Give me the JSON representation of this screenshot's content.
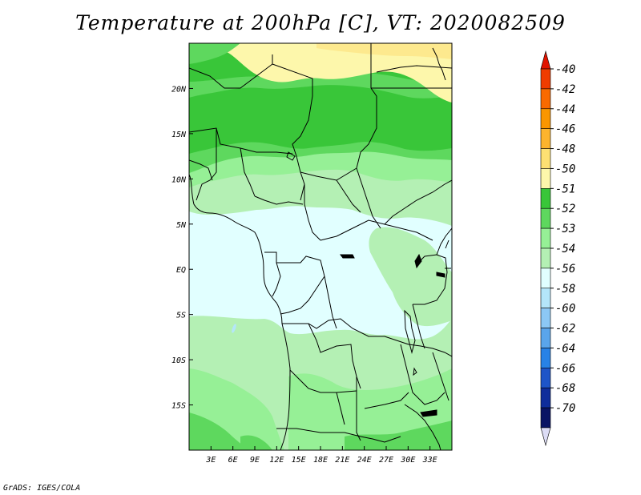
{
  "title": "Temperature at 200hPa [C], VT: 2020082509",
  "footer": "GrADS: IGES/COLA",
  "map": {
    "lon_range": [
      0,
      36
    ],
    "lat_range": [
      -20,
      25
    ],
    "lat_ticks": [
      {
        "value": 20,
        "label": "20N"
      },
      {
        "value": 15,
        "label": "15N"
      },
      {
        "value": 10,
        "label": "10N"
      },
      {
        "value": 5,
        "label": "5N"
      },
      {
        "value": 0,
        "label": "EQ"
      },
      {
        "value": -5,
        "label": "5S"
      },
      {
        "value": -10,
        "label": "10S"
      },
      {
        "value": -15,
        "label": "15S"
      }
    ],
    "lon_ticks": [
      {
        "value": 3,
        "label": "3E"
      },
      {
        "value": 6,
        "label": "6E"
      },
      {
        "value": 9,
        "label": "9E"
      },
      {
        "value": 12,
        "label": "12E"
      },
      {
        "value": 15,
        "label": "15E"
      },
      {
        "value": 18,
        "label": "18E"
      },
      {
        "value": 21,
        "label": "21E"
      },
      {
        "value": 24,
        "label": "24E"
      },
      {
        "value": 27,
        "label": "27E"
      },
      {
        "value": 30,
        "label": "30E"
      },
      {
        "value": 33,
        "label": "33E"
      }
    ]
  },
  "colorbar": {
    "levels": [
      "-40",
      "-42",
      "-44",
      "-46",
      "-48",
      "-50",
      "-51",
      "-52",
      "-53",
      "-54",
      "-56",
      "-58",
      "-60",
      "-62",
      "-64",
      "-66",
      "-68",
      "-70"
    ],
    "colors": [
      "#e11400",
      "#f03c00",
      "#f96a00",
      "#fa9600",
      "#fcb42d",
      "#fde073",
      "#fdf7ab",
      "#39c639",
      "#5ed85e",
      "#96f096",
      "#b4f0b4",
      "#e1ffff",
      "#b4e6fa",
      "#8cc8f5",
      "#5aa5eb",
      "#2882e6",
      "#1e55c8",
      "#0f2d9b",
      "#0a1464",
      "#dcdcf5"
    ]
  },
  "fill_colors": {
    "yellow": "#fdf7ab",
    "yellow_light": "#fde98e",
    "green_dark": "#39c639",
    "green_mid": "#5ed85e",
    "green_light": "#96f096",
    "green_pale": "#b4f0b4",
    "cyan_pale": "#e1ffff",
    "blue_pale": "#b4e6fa"
  }
}
